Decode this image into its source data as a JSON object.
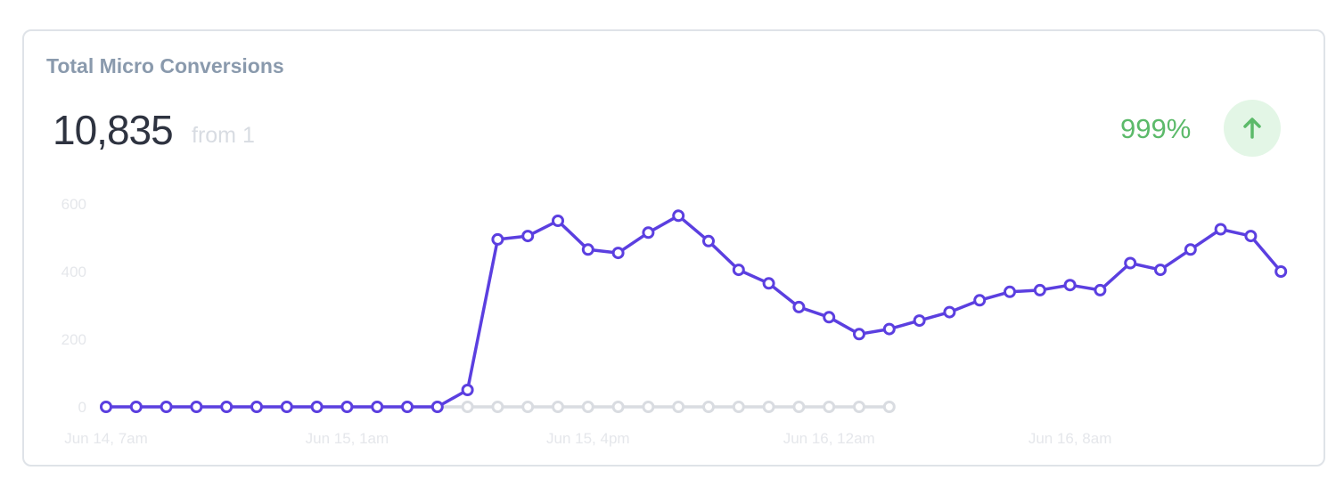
{
  "card": {
    "title": "Total Micro Conversions",
    "value": "10,835",
    "from_text": "from 1",
    "change_pct": "999%",
    "trend_icon": "arrow-up-icon",
    "trend_color": "#5cba6a"
  },
  "chart_data": {
    "type": "line",
    "title": "Total Micro Conversions",
    "ylim": [
      0,
      600
    ],
    "yticks": [
      "0",
      "200",
      "400",
      "600"
    ],
    "xtick_labels": [
      "Jun 14, 7am",
      "Jun 15, 1am",
      "Jun 15, 4pm",
      "Jun 16, 12am",
      "Jun 16, 8am"
    ],
    "grid": false,
    "colors": {
      "current": "#5b3fe0",
      "previous": "#d9dce1"
    },
    "series": [
      {
        "values": [
          0,
          0,
          0,
          0,
          0,
          0,
          0,
          0,
          0,
          0,
          0,
          0,
          50,
          495,
          505,
          550,
          465,
          455,
          515,
          565,
          490,
          405,
          365,
          295,
          265,
          215,
          230,
          255,
          280,
          315,
          340,
          345,
          360,
          345,
          425,
          405,
          465,
          525,
          505,
          400
        ]
      },
      {
        "values": [
          0,
          0,
          0,
          0,
          0,
          0,
          0,
          0,
          0,
          0,
          0,
          0,
          0,
          0,
          0,
          0,
          0,
          0,
          0,
          0,
          0,
          0,
          0,
          0,
          0,
          0,
          0
        ]
      }
    ]
  }
}
